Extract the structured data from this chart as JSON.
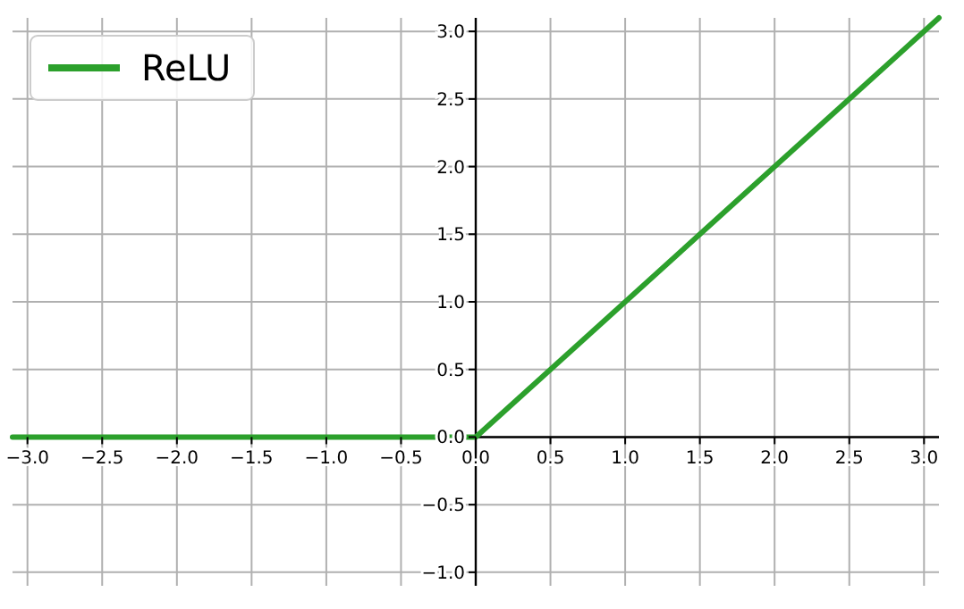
{
  "chart_data": {
    "type": "line",
    "x": [
      -3.1,
      0,
      3.1
    ],
    "series": [
      {
        "name": "ReLU",
        "color": "#2ca02c",
        "values": [
          0,
          0,
          3.1
        ]
      }
    ],
    "xlim": [
      -3.1,
      3.1
    ],
    "ylim": [
      -1.1,
      3.1
    ],
    "xticks": [
      {
        "value": -3,
        "label": "−3.0"
      },
      {
        "value": -2.5,
        "label": "−2.5"
      },
      {
        "value": -2,
        "label": "−2.0"
      },
      {
        "value": -1.5,
        "label": "−1.5"
      },
      {
        "value": -1,
        "label": "−1.0"
      },
      {
        "value": -0.5,
        "label": "−0.5"
      },
      {
        "value": 0,
        "label": "0.0"
      },
      {
        "value": 0.5,
        "label": "0.5"
      },
      {
        "value": 1,
        "label": "1.0"
      },
      {
        "value": 1.5,
        "label": "1.5"
      },
      {
        "value": 2,
        "label": "2.0"
      },
      {
        "value": 2.5,
        "label": "2.5"
      },
      {
        "value": 3,
        "label": "3.0"
      }
    ],
    "yticks": [
      {
        "value": -1,
        "label": "−1.0"
      },
      {
        "value": -0.5,
        "label": "−0.5"
      },
      {
        "value": 0,
        "label": "0.0"
      },
      {
        "value": 0.5,
        "label": "0.5"
      },
      {
        "value": 1,
        "label": "1.0"
      },
      {
        "value": 1.5,
        "label": "1.5"
      },
      {
        "value": 2,
        "label": "2.0"
      },
      {
        "value": 2.5,
        "label": "2.5"
      },
      {
        "value": 3,
        "label": "3.0"
      }
    ],
    "grid": true,
    "legend": "top left",
    "marker": "none",
    "line_style": "solid"
  }
}
